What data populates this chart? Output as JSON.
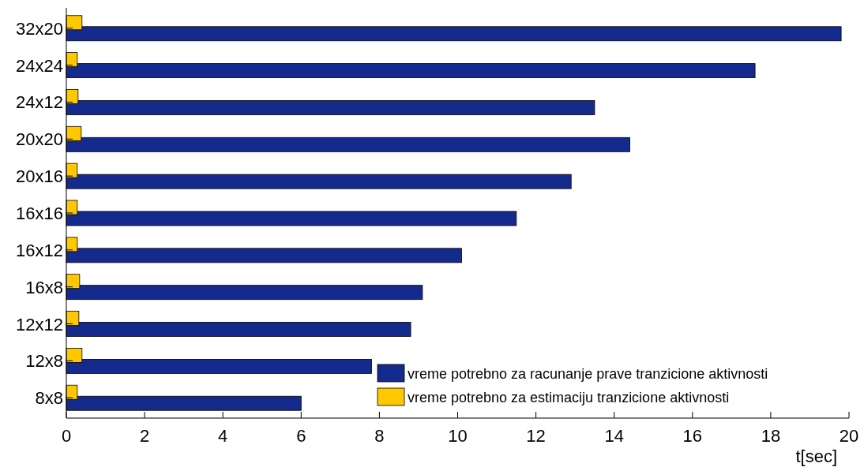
{
  "chart_data": {
    "type": "bar",
    "orientation": "horizontal",
    "xlabel": "t[sec]",
    "categories": [
      "32x20",
      "24x24",
      "24x12",
      "20x20",
      "20x16",
      "16x16",
      "16x12",
      "16x8",
      "12x12",
      "12x8",
      "8x8"
    ],
    "series": [
      {
        "name": "vreme potrebno za racunanje prave tranzicione aktivnosti",
        "color": "#142a8c",
        "values": [
          19.8,
          17.6,
          13.5,
          14.4,
          12.9,
          11.5,
          10.1,
          9.1,
          8.8,
          7.8,
          6.0
        ]
      },
      {
        "name": "vreme potrebno za estimaciju tranzicione aktivnosti",
        "color": "#ffc800",
        "values": [
          0.4,
          0.28,
          0.3,
          0.38,
          0.28,
          0.28,
          0.28,
          0.34,
          0.32,
          0.4,
          0.28
        ]
      }
    ],
    "xlim": [
      0,
      20
    ],
    "xticks": [
      0,
      2,
      4,
      6,
      8,
      10,
      12,
      14,
      16,
      18,
      20
    ],
    "legend": "bottom right",
    "grid": false
  }
}
